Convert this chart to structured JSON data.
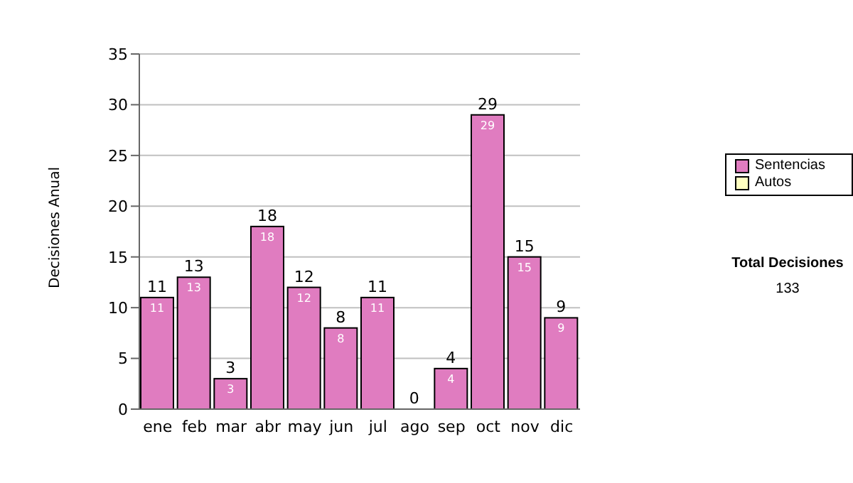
{
  "chart_data": {
    "type": "bar",
    "stacked": true,
    "ylabel": "Decisiones Anual",
    "categories": [
      "ene",
      "feb",
      "mar",
      "abr",
      "may",
      "jun",
      "jul",
      "ago",
      "sep",
      "oct",
      "nov",
      "dic"
    ],
    "series": [
      {
        "name": "Sentencias",
        "color": "#e07cc0",
        "values": [
          11,
          13,
          3,
          18,
          12,
          8,
          11,
          0,
          4,
          29,
          15,
          9
        ],
        "value_labels": [
          "11",
          "13",
          "3",
          "18",
          "12",
          "8",
          "11",
          null,
          "4",
          "29",
          "15",
          "9"
        ]
      },
      {
        "name": "Autos",
        "color": "#ffffc0",
        "values": [
          0,
          0,
          0,
          0,
          0,
          0,
          0,
          0,
          0,
          0,
          0,
          0
        ]
      }
    ],
    "totals": [
      "11",
      "13",
      "3",
      "18",
      "12",
      "8",
      "11",
      "0",
      "4",
      "29",
      "15",
      "9"
    ],
    "ylim": [
      0,
      35
    ],
    "yticks": [
      0,
      5,
      10,
      15,
      20,
      25,
      30,
      35
    ],
    "grid": "y",
    "legend": "right",
    "annotations": [
      "Total Decisiones",
      "133"
    ]
  }
}
